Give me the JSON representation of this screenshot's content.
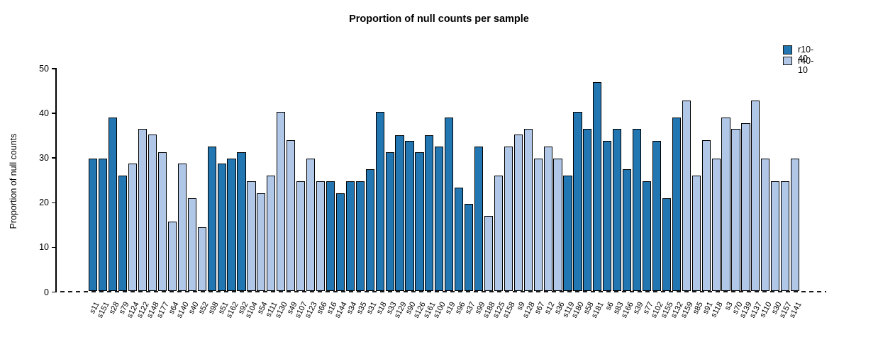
{
  "header": {
    "title": "Proportion of null counts per sample"
  },
  "chart_data": {
    "type": "bar",
    "title": "Proportion of null counts per sample",
    "xlabel": "",
    "ylabel": "Proportion of null counts",
    "ylim": [
      0,
      50
    ],
    "yticks": [
      0,
      10,
      20,
      30,
      40,
      50
    ],
    "grid": false,
    "legend_position": "top-right",
    "baseline": {
      "value": 0,
      "style": "dashed"
    },
    "series_colors": {
      "r10-40": "#2277b3",
      "r40-10": "#b1c7e8"
    },
    "legend": [
      {
        "label": "r10-40",
        "color": "#2277b3"
      },
      {
        "label": "r40-10",
        "color": "#b1c7e8"
      }
    ],
    "bars": [
      {
        "sample": "s11",
        "value": 29.8,
        "series": "r10-40"
      },
      {
        "sample": "s151",
        "value": 29.8,
        "series": "r10-40"
      },
      {
        "sample": "s28",
        "value": 39.0,
        "series": "r10-40"
      },
      {
        "sample": "s79",
        "value": 26.0,
        "series": "r10-40"
      },
      {
        "sample": "s124",
        "value": 28.6,
        "series": "r40-10"
      },
      {
        "sample": "s122",
        "value": 36.4,
        "series": "r40-10"
      },
      {
        "sample": "s148",
        "value": 35.1,
        "series": "r40-10"
      },
      {
        "sample": "s177",
        "value": 31.2,
        "series": "r40-10"
      },
      {
        "sample": "s64",
        "value": 15.6,
        "series": "r40-10"
      },
      {
        "sample": "s140",
        "value": 28.6,
        "series": "r40-10"
      },
      {
        "sample": "s40",
        "value": 20.8,
        "series": "r40-10"
      },
      {
        "sample": "s52",
        "value": 14.3,
        "series": "r40-10"
      },
      {
        "sample": "s98",
        "value": 32.4,
        "series": "r10-40"
      },
      {
        "sample": "s51",
        "value": 28.6,
        "series": "r10-40"
      },
      {
        "sample": "s162",
        "value": 29.8,
        "series": "r10-40"
      },
      {
        "sample": "s92",
        "value": 31.2,
        "series": "r10-40"
      },
      {
        "sample": "s104",
        "value": 24.6,
        "series": "r40-10"
      },
      {
        "sample": "s54",
        "value": 22.0,
        "series": "r40-10"
      },
      {
        "sample": "s111",
        "value": 26.0,
        "series": "r40-10"
      },
      {
        "sample": "s130",
        "value": 40.2,
        "series": "r40-10"
      },
      {
        "sample": "s49",
        "value": 33.8,
        "series": "r40-10"
      },
      {
        "sample": "s107",
        "value": 24.6,
        "series": "r40-10"
      },
      {
        "sample": "s123",
        "value": 29.8,
        "series": "r40-10"
      },
      {
        "sample": "s66",
        "value": 24.6,
        "series": "r40-10"
      },
      {
        "sample": "s16",
        "value": 24.6,
        "series": "r10-40"
      },
      {
        "sample": "s144",
        "value": 22.0,
        "series": "r10-40"
      },
      {
        "sample": "s34",
        "value": 24.6,
        "series": "r10-40"
      },
      {
        "sample": "s35",
        "value": 24.6,
        "series": "r10-40"
      },
      {
        "sample": "s31",
        "value": 27.4,
        "series": "r10-40"
      },
      {
        "sample": "s18",
        "value": 40.2,
        "series": "r10-40"
      },
      {
        "sample": "s33",
        "value": 31.2,
        "series": "r10-40"
      },
      {
        "sample": "s129",
        "value": 35.0,
        "series": "r10-40"
      },
      {
        "sample": "s90",
        "value": 33.7,
        "series": "r10-40"
      },
      {
        "sample": "s126",
        "value": 31.2,
        "series": "r10-40"
      },
      {
        "sample": "s161",
        "value": 35.0,
        "series": "r10-40"
      },
      {
        "sample": "s100",
        "value": 32.4,
        "series": "r10-40"
      },
      {
        "sample": "s19",
        "value": 39.0,
        "series": "r10-40"
      },
      {
        "sample": "s96",
        "value": 23.3,
        "series": "r10-40"
      },
      {
        "sample": "s37",
        "value": 19.6,
        "series": "r10-40"
      },
      {
        "sample": "s99",
        "value": 32.4,
        "series": "r10-40"
      },
      {
        "sample": "s188",
        "value": 16.9,
        "series": "r40-10"
      },
      {
        "sample": "s125",
        "value": 26.0,
        "series": "r40-10"
      },
      {
        "sample": "s158",
        "value": 32.4,
        "series": "r40-10"
      },
      {
        "sample": "s9",
        "value": 35.1,
        "series": "r40-10"
      },
      {
        "sample": "s128",
        "value": 36.4,
        "series": "r40-10"
      },
      {
        "sample": "s67",
        "value": 29.8,
        "series": "r40-10"
      },
      {
        "sample": "s12",
        "value": 32.4,
        "series": "r40-10"
      },
      {
        "sample": "s36",
        "value": 29.8,
        "series": "r40-10"
      },
      {
        "sample": "s119",
        "value": 26.0,
        "series": "r10-40"
      },
      {
        "sample": "s180",
        "value": 40.2,
        "series": "r10-40"
      },
      {
        "sample": "s58",
        "value": 36.4,
        "series": "r10-40"
      },
      {
        "sample": "s181",
        "value": 46.8,
        "series": "r10-40"
      },
      {
        "sample": "s6",
        "value": 33.7,
        "series": "r10-40"
      },
      {
        "sample": "s83",
        "value": 36.4,
        "series": "r10-40"
      },
      {
        "sample": "s166",
        "value": 27.3,
        "series": "r10-40"
      },
      {
        "sample": "s39",
        "value": 36.4,
        "series": "r10-40"
      },
      {
        "sample": "s77",
        "value": 24.6,
        "series": "r10-40"
      },
      {
        "sample": "s102",
        "value": 33.7,
        "series": "r10-40"
      },
      {
        "sample": "s155",
        "value": 20.8,
        "series": "r10-40"
      },
      {
        "sample": "s132",
        "value": 39.0,
        "series": "r10-40"
      },
      {
        "sample": "s159",
        "value": 42.8,
        "series": "r40-10"
      },
      {
        "sample": "s85",
        "value": 26.0,
        "series": "r40-10"
      },
      {
        "sample": "s91",
        "value": 33.8,
        "series": "r40-10"
      },
      {
        "sample": "s118",
        "value": 29.8,
        "series": "r40-10"
      },
      {
        "sample": "s3",
        "value": 39.0,
        "series": "r40-10"
      },
      {
        "sample": "s70",
        "value": 36.4,
        "series": "r40-10"
      },
      {
        "sample": "s139",
        "value": 37.7,
        "series": "r40-10"
      },
      {
        "sample": "s137",
        "value": 42.8,
        "series": "r40-10"
      },
      {
        "sample": "s110",
        "value": 29.8,
        "series": "r40-10"
      },
      {
        "sample": "s30",
        "value": 24.6,
        "series": "r40-10"
      },
      {
        "sample": "s157",
        "value": 24.6,
        "series": "r40-10"
      },
      {
        "sample": "s141",
        "value": 29.8,
        "series": "r40-10"
      }
    ]
  }
}
